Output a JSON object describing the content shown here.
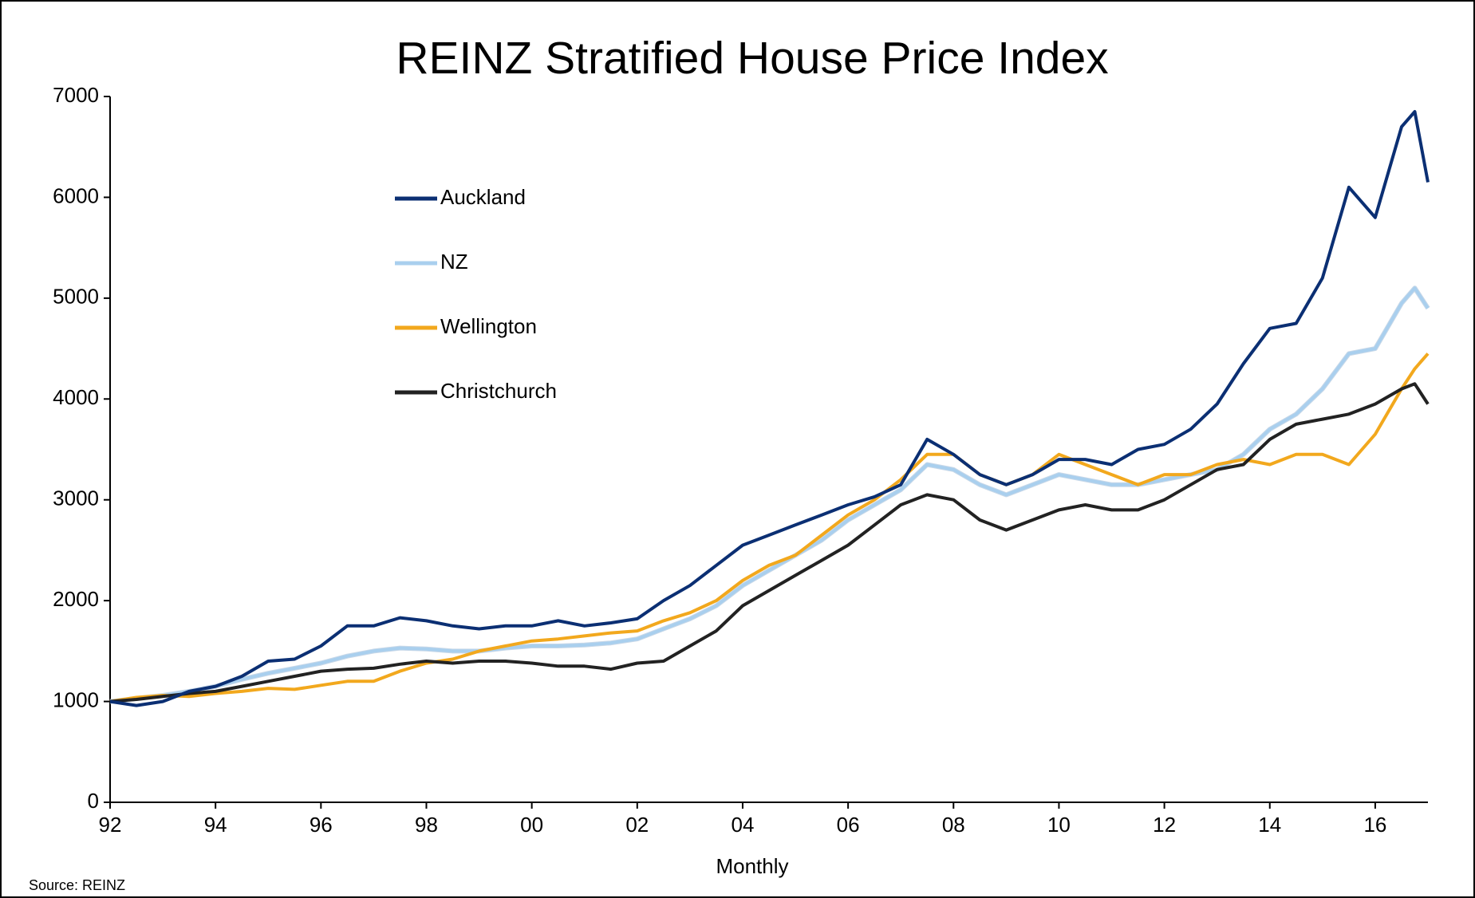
{
  "chart_data": {
    "type": "line",
    "title": "REINZ Stratified House Price Index",
    "x_label": "Monthly",
    "source": "Source: REINZ",
    "x": [
      1992,
      1992.5,
      1993,
      1993.5,
      1994,
      1994.5,
      1995,
      1995.5,
      1996,
      1996.5,
      1997,
      1997.5,
      1998,
      1998.5,
      1999,
      1999.5,
      2000,
      2000.5,
      2001,
      2001.5,
      2002,
      2002.5,
      2003,
      2003.5,
      2004,
      2004.5,
      2005,
      2005.5,
      2006,
      2006.5,
      2007,
      2007.5,
      2008,
      2008.5,
      2009,
      2009.5,
      2010,
      2010.5,
      2011,
      2011.5,
      2012,
      2012.5,
      2013,
      2013.5,
      2014,
      2014.5,
      2015,
      2015.5,
      2016,
      2016.5,
      2016.75,
      2017
    ],
    "series": [
      {
        "name": "Auckland",
        "color": "#0b2f73",
        "values": [
          1000,
          960,
          1000,
          1100,
          1150,
          1250,
          1400,
          1420,
          1550,
          1750,
          1750,
          1830,
          1800,
          1750,
          1720,
          1750,
          1750,
          1800,
          1750,
          1780,
          1820,
          2000,
          2150,
          2350,
          2550,
          2650,
          2750,
          2850,
          2950,
          3030,
          3150,
          3600,
          3450,
          3250,
          3150,
          3250,
          3400,
          3400,
          3350,
          3500,
          3550,
          3700,
          3950,
          4350,
          4700,
          4750,
          5200,
          6100,
          5800,
          6700,
          6850,
          6150
        ]
      },
      {
        "name": "NZ",
        "color": "#a9cfee",
        "values": [
          1000,
          1030,
          1060,
          1100,
          1150,
          1220,
          1280,
          1330,
          1380,
          1450,
          1500,
          1530,
          1520,
          1500,
          1500,
          1530,
          1550,
          1550,
          1560,
          1580,
          1620,
          1720,
          1820,
          1950,
          2150,
          2300,
          2450,
          2600,
          2800,
          2950,
          3100,
          3350,
          3300,
          3150,
          3050,
          3150,
          3250,
          3200,
          3150,
          3150,
          3200,
          3250,
          3300,
          3450,
          3700,
          3850,
          4100,
          4450,
          4500,
          4950,
          5100,
          4900
        ]
      },
      {
        "name": "Wellington",
        "color": "#f2a81d",
        "values": [
          1000,
          1040,
          1060,
          1050,
          1080,
          1100,
          1130,
          1120,
          1160,
          1200,
          1200,
          1300,
          1380,
          1420,
          1500,
          1550,
          1600,
          1620,
          1650,
          1680,
          1700,
          1800,
          1880,
          2000,
          2200,
          2350,
          2450,
          2650,
          2850,
          3000,
          3200,
          3450,
          3450,
          3250,
          3150,
          3250,
          3450,
          3350,
          3250,
          3150,
          3250,
          3250,
          3350,
          3400,
          3350,
          3450,
          3450,
          3350,
          3650,
          4100,
          4300,
          4450
        ]
      },
      {
        "name": "Christchurch",
        "color": "#222222",
        "values": [
          1000,
          1020,
          1050,
          1080,
          1100,
          1150,
          1200,
          1250,
          1300,
          1320,
          1330,
          1370,
          1400,
          1380,
          1400,
          1400,
          1380,
          1350,
          1350,
          1320,
          1380,
          1400,
          1550,
          1700,
          1950,
          2100,
          2250,
          2400,
          2550,
          2750,
          2950,
          3050,
          3000,
          2800,
          2700,
          2800,
          2900,
          2950,
          2900,
          2900,
          3000,
          3150,
          3300,
          3350,
          3600,
          3750,
          3800,
          3850,
          3950,
          4100,
          4150,
          3950
        ]
      }
    ],
    "xlim": [
      1992,
      2017
    ],
    "xticks": [
      {
        "value": 1992,
        "label": "92"
      },
      {
        "value": 1994,
        "label": "94"
      },
      {
        "value": 1996,
        "label": "96"
      },
      {
        "value": 1998,
        "label": "98"
      },
      {
        "value": 2000,
        "label": "00"
      },
      {
        "value": 2002,
        "label": "02"
      },
      {
        "value": 2004,
        "label": "04"
      },
      {
        "value": 2006,
        "label": "06"
      },
      {
        "value": 2008,
        "label": "08"
      },
      {
        "value": 2010,
        "label": "10"
      },
      {
        "value": 2012,
        "label": "12"
      },
      {
        "value": 2014,
        "label": "14"
      },
      {
        "value": 2016,
        "label": "16"
      }
    ],
    "ylim": [
      0,
      7000
    ],
    "yticks": [
      0,
      1000,
      2000,
      3000,
      4000,
      5000,
      6000,
      7000
    ],
    "grid": false
  }
}
